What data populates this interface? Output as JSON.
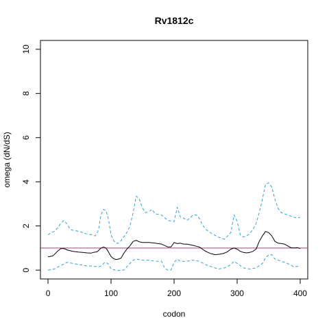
{
  "chart_data": {
    "type": "line",
    "title": "Rv1812c",
    "xlabel": "codon",
    "ylabel": "omega (dN/dS)",
    "xlim": [
      -12,
      412
    ],
    "ylim": [
      -0.4,
      10.4
    ],
    "xticks": [
      0,
      100,
      200,
      300,
      400
    ],
    "yticks": [
      0,
      2,
      4,
      6,
      8,
      10
    ],
    "grid": false,
    "reference_line": {
      "y": 1,
      "color": "#b03a8c"
    },
    "series": [
      {
        "style": "solid",
        "color": "#000000",
        "x": [
          0,
          8,
          15,
          20,
          25,
          32,
          40,
          48,
          55,
          62,
          68,
          72,
          78,
          84,
          88,
          92,
          96,
          100,
          104,
          108,
          112,
          116,
          120,
          125,
          130,
          135,
          140,
          145,
          150,
          160,
          170,
          180,
          190,
          195,
          200,
          205,
          210,
          215,
          220,
          230,
          240,
          245,
          250,
          258,
          265,
          272,
          278,
          284,
          290,
          295,
          300,
          305,
          310,
          315,
          320,
          325,
          330,
          335,
          340,
          345,
          350,
          355,
          360,
          365,
          370,
          375,
          380,
          385,
          390,
          395,
          400
        ],
        "y": [
          0.6,
          0.65,
          0.85,
          0.97,
          0.98,
          0.9,
          0.85,
          0.82,
          0.8,
          0.78,
          0.77,
          0.8,
          0.83,
          1.0,
          1.05,
          1.0,
          0.82,
          0.62,
          0.52,
          0.48,
          0.5,
          0.55,
          0.75,
          0.95,
          1.1,
          1.3,
          1.35,
          1.28,
          1.25,
          1.25,
          1.22,
          1.18,
          1.05,
          1.05,
          1.25,
          1.2,
          1.22,
          1.18,
          1.18,
          1.12,
          1.05,
          0.95,
          0.85,
          0.75,
          0.7,
          0.72,
          0.75,
          0.82,
          0.95,
          1.0,
          0.95,
          0.85,
          0.8,
          0.78,
          0.8,
          0.85,
          0.95,
          1.3,
          1.55,
          1.75,
          1.7,
          1.55,
          1.3,
          1.22,
          1.2,
          1.18,
          1.1,
          1.02,
          1.0,
          1.02,
          0.98
        ]
      },
      {
        "style": "dashed",
        "color": "#29a3d8",
        "x": [
          0,
          5,
          10,
          15,
          20,
          25,
          30,
          35,
          40,
          50,
          60,
          70,
          75,
          80,
          84,
          88,
          92,
          96,
          100,
          105,
          110,
          115,
          120,
          125,
          130,
          135,
          140,
          145,
          150,
          155,
          160,
          165,
          170,
          180,
          190,
          200,
          205,
          210,
          215,
          220,
          225,
          230,
          235,
          240,
          245,
          250,
          260,
          270,
          280,
          290,
          295,
          300,
          305,
          310,
          315,
          320,
          325,
          330,
          335,
          340,
          345,
          350,
          355,
          360,
          365,
          370,
          375,
          380,
          385,
          390,
          395,
          400
        ],
        "y": [
          1.6,
          1.7,
          1.75,
          1.9,
          2.1,
          2.25,
          2.1,
          1.85,
          1.8,
          1.75,
          1.65,
          1.6,
          1.55,
          1.8,
          2.5,
          2.75,
          2.7,
          2.3,
          1.6,
          1.3,
          1.2,
          1.3,
          1.5,
          1.7,
          2.0,
          2.6,
          3.35,
          3.2,
          2.8,
          2.6,
          2.65,
          2.75,
          2.55,
          2.5,
          2.25,
          2.2,
          2.85,
          2.4,
          2.35,
          2.25,
          2.35,
          2.5,
          2.5,
          2.35,
          2.05,
          1.85,
          1.65,
          1.5,
          1.4,
          1.7,
          2.5,
          2.2,
          1.6,
          1.5,
          1.55,
          1.65,
          1.85,
          2.1,
          2.6,
          3.2,
          3.9,
          3.95,
          3.75,
          3.2,
          2.8,
          2.6,
          2.55,
          2.5,
          2.45,
          2.4,
          2.35,
          2.4
        ]
      },
      {
        "style": "dashed",
        "color": "#29a3d8",
        "x": [
          0,
          10,
          20,
          30,
          40,
          50,
          60,
          70,
          80,
          85,
          90,
          95,
          100,
          110,
          120,
          130,
          135,
          140,
          150,
          160,
          170,
          180,
          185,
          190,
          195,
          200,
          205,
          210,
          220,
          230,
          240,
          250,
          260,
          270,
          280,
          290,
          295,
          300,
          310,
          320,
          330,
          340,
          345,
          350,
          355,
          360,
          370,
          380,
          390,
          400
        ],
        "y": [
          0.0,
          0.05,
          0.2,
          0.35,
          0.3,
          0.25,
          0.2,
          0.18,
          0.15,
          0.2,
          0.35,
          0.3,
          0.05,
          -0.02,
          0.0,
          0.3,
          0.45,
          0.5,
          0.45,
          0.45,
          0.4,
          0.4,
          0.1,
          0.0,
          0.0,
          0.35,
          0.5,
          0.4,
          0.4,
          0.45,
          0.4,
          0.25,
          0.15,
          0.05,
          0.1,
          0.25,
          0.4,
          0.3,
          0.1,
          0.05,
          0.1,
          0.3,
          0.55,
          0.7,
          0.7,
          0.5,
          0.4,
          0.3,
          0.15,
          0.18
        ]
      }
    ]
  }
}
